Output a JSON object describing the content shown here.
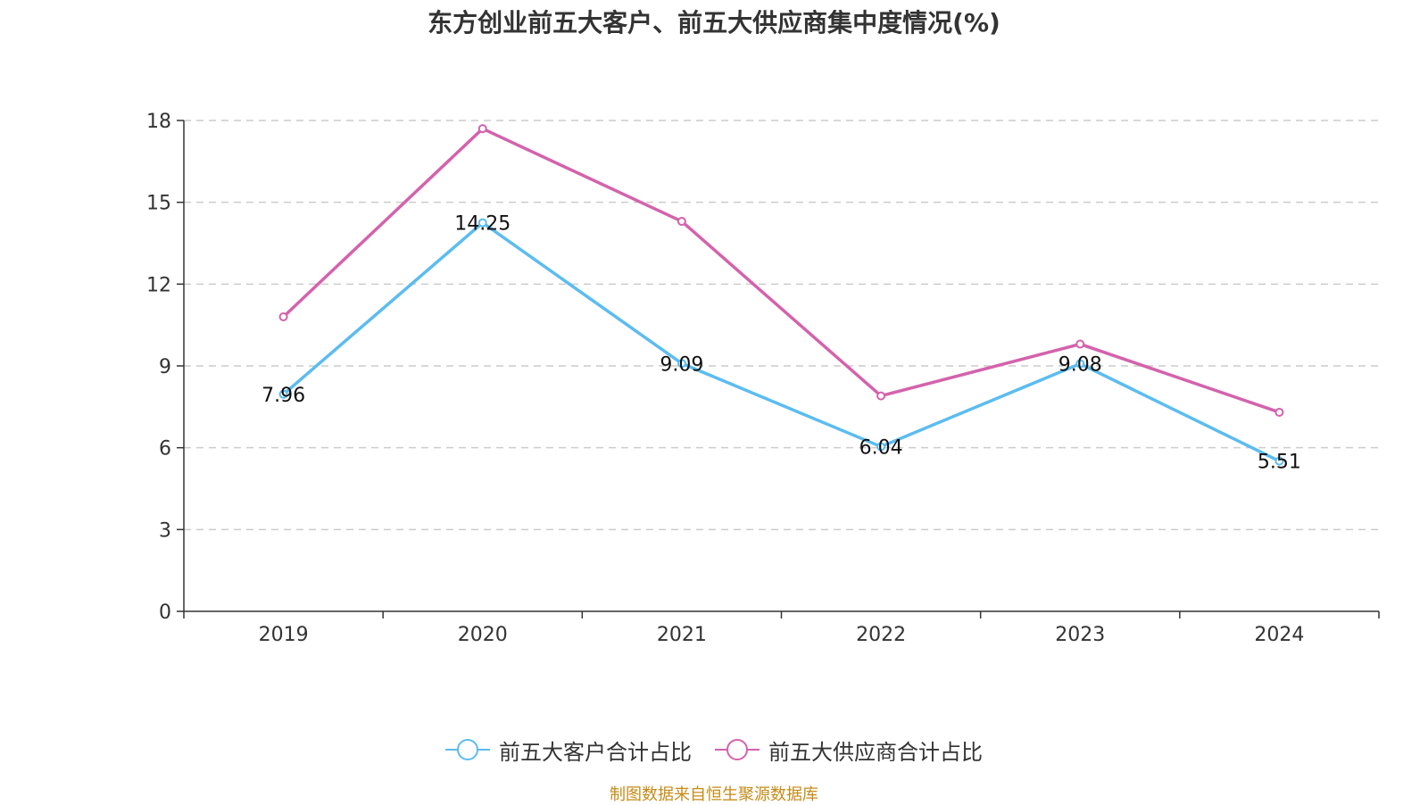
{
  "chart_data": {
    "type": "line",
    "title": "东方创业前五大客户、前五大供应商集中度情况(%)",
    "categories": [
      "2019",
      "2020",
      "2021",
      "2022",
      "2023",
      "2024"
    ],
    "ylim": [
      0,
      18
    ],
    "yticks": [
      "0",
      "3",
      "6",
      "9",
      "12",
      "15",
      "18"
    ],
    "grid": true,
    "legend_position": "bottom-center",
    "series": [
      {
        "name": "前五大客户合计占比",
        "color": "#5bbcf0",
        "values": [
          7.96,
          14.25,
          9.09,
          6.04,
          9.08,
          5.51
        ],
        "labels": [
          "7.96",
          "14.25",
          "9.09",
          "6.04",
          "9.08",
          "5.51"
        ]
      },
      {
        "name": "前五大供应商合计占比",
        "color": "#d462ac",
        "values": [
          10.8,
          17.7,
          14.3,
          7.9,
          9.8,
          7.3
        ]
      }
    ]
  },
  "source_note": "制图数据来自恒生聚源数据库"
}
